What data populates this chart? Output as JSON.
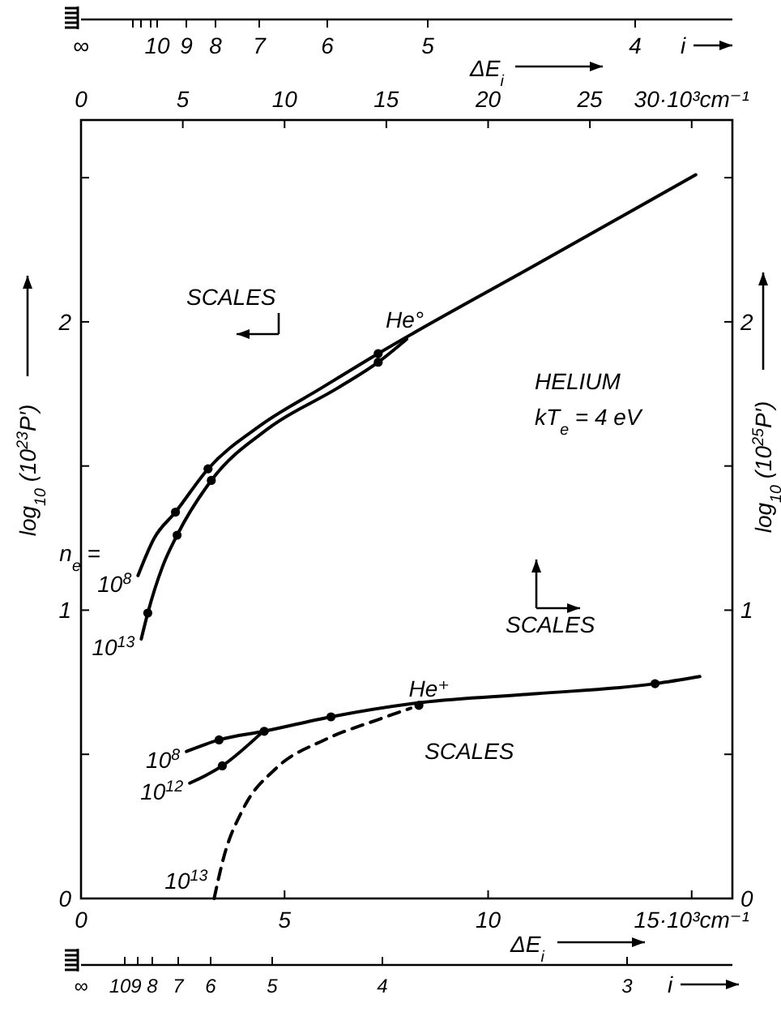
{
  "chart_data": {
    "type": "line",
    "xlabel": "ΔE$_{i}$",
    "x2label": "ΔE$_{i}$",
    "ylabel": "log$_{10}$ (10$^{23}$P′)",
    "y2label": "log$_{10}$ (10$^{25}$P′)",
    "xlim": [
      0,
      16
    ],
    "xticks": [
      0,
      5,
      10,
      {
        "value": 15,
        "label": "15·10³cm⁻¹"
      }
    ],
    "x2lim": [
      0,
      32
    ],
    "x2ticks": [
      0,
      5,
      10,
      15,
      20,
      25,
      {
        "value": 30,
        "label": "30·10³cm⁻¹"
      }
    ],
    "ylim": [
      0,
      2.7
    ],
    "yticks": [
      0,
      {
        "value": 0.5,
        "label": null
      },
      1,
      {
        "value": 1.5,
        "label": null
      },
      2,
      {
        "value": 2.5,
        "label": null
      }
    ],
    "y2lim": [
      0,
      2.7
    ],
    "y2ticks": [
      0,
      {
        "value": 0.5,
        "label": null
      },
      1,
      {
        "value": 1.5,
        "label": null
      },
      2,
      {
        "value": 2.5,
        "label": null
      }
    ],
    "annotations": [
      "n$_{e}$ =",
      "He°",
      {
        "text": "He⁺",
        "x": 8.05,
        "y": 0.7
      },
      "HELIUM",
      "kT$_{e}$ = 4 eV",
      "SCALES",
      "SCALES",
      "SCALES",
      "∞",
      "10",
      "9",
      "8",
      "7",
      "6",
      "5",
      "4",
      "i",
      "∞",
      "10",
      "9",
      "8",
      "7",
      "6",
      "5",
      "4",
      "3",
      "i"
    ],
    "series": [
      {
        "name": "10$^{8}$",
        "axis": "x2",
        "color": "#000000",
        "line_style": "solid",
        "marker": "none",
        "x": [
          2.8,
          3.6,
          4.64,
          6.24,
          8.8,
          11.8,
          14.6,
          22.4,
          30.2
        ],
        "values": [
          1.12,
          1.25,
          1.34,
          1.49,
          1.64,
          1.77,
          1.89,
          2.2,
          2.51
        ]
      },
      {
        "name": "10$^{13}$",
        "axis": "x2",
        "color": "#000000",
        "line_style": "solid",
        "marker": "none",
        "x": [
          2.96,
          3.28,
          4.0,
          4.72,
          6.4,
          9.2,
          12.6,
          14.6,
          16.0
        ],
        "values": [
          0.9,
          0.99,
          1.15,
          1.26,
          1.45,
          1.63,
          1.77,
          1.86,
          1.94
        ]
      },
      {
        "type": "scatter",
        "axis": "x2",
        "color": "#000000",
        "marker": "circle",
        "x": [
          4.64,
          6.24,
          14.6,
          3.28,
          4.72,
          6.4,
          14.6
        ],
        "values": [
          1.34,
          1.49,
          1.89,
          0.99,
          1.26,
          1.45,
          1.86
        ]
      },
      {
        "name": "10$^{8}$",
        "color": "#000000",
        "line_style": "solid",
        "marker": "none",
        "x": [
          2.59,
          3.39,
          4.5,
          6.14,
          8.37,
          11.16,
          14.1,
          15.2
        ],
        "values": [
          0.51,
          0.55,
          0.58,
          0.63,
          0.68,
          0.71,
          0.745,
          0.77
        ]
      },
      {
        "name": "10$^{12}$",
        "color": "#000000",
        "line_style": "solid",
        "marker": "none",
        "x": [
          2.67,
          3.47,
          4.4
        ],
        "values": [
          0.4,
          0.46,
          0.57
        ]
      },
      {
        "name": "10$^{13}$",
        "color": "#000000",
        "line_style": "dashed",
        "marker": "none",
        "x": [
          3.27,
          3.5,
          3.98,
          4.78,
          5.98,
          7.29,
          8.1
        ],
        "values": [
          0,
          0.14,
          0.31,
          0.45,
          0.55,
          0.62,
          0.66
        ]
      },
      {
        "type": "scatter",
        "color": "#000000",
        "marker": "circle",
        "x": [
          3.39,
          4.5,
          6.14,
          8.3,
          14.1,
          3.47
        ],
        "values": [
          0.55,
          0.58,
          0.63,
          0.67,
          0.745,
          0.46
        ]
      }
    ]
  }
}
